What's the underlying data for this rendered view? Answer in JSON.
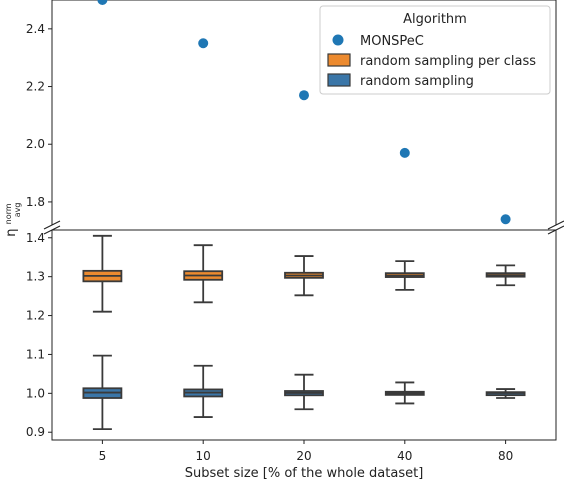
{
  "chart_data": {
    "type": "box",
    "xlabel": "Subset size [% of the whole dataset]",
    "ylabel_main": "η",
    "ylabel_sup": "norm",
    "ylabel_sub": "avg",
    "categories": [
      "5",
      "10",
      "20",
      "40",
      "80"
    ],
    "y_top_range": [
      1.72,
      2.5
    ],
    "y_bottom_range": [
      0.88,
      1.42
    ],
    "y_top_ticks": [
      "1.8",
      "2.0",
      "2.2",
      "2.4"
    ],
    "y_bottom_ticks": [
      "0.9",
      "1.0",
      "1.1",
      "1.2",
      "1.3",
      "1.4"
    ],
    "legend": {
      "title": "Algorithm",
      "position": "top-right",
      "entries": [
        "MONSPeC",
        "random sampling per class",
        "random sampling"
      ]
    },
    "series": [
      {
        "name": "MONSPeC",
        "kind": "scatter",
        "color": "#1f77b4",
        "values": [
          2.5,
          2.35,
          2.17,
          1.97,
          1.74
        ]
      },
      {
        "name": "random sampling per class",
        "kind": "box",
        "color": "#ec8a2f",
        "boxes": [
          {
            "min": 1.21,
            "q1": 1.288,
            "median": 1.302,
            "q3": 1.315,
            "max": 1.405
          },
          {
            "min": 1.234,
            "q1": 1.292,
            "median": 1.303,
            "q3": 1.314,
            "max": 1.381
          },
          {
            "min": 1.252,
            "q1": 1.297,
            "median": 1.303,
            "q3": 1.31,
            "max": 1.353
          },
          {
            "min": 1.266,
            "q1": 1.299,
            "median": 1.303,
            "q3": 1.309,
            "max": 1.34
          },
          {
            "min": 1.278,
            "q1": 1.3,
            "median": 1.304,
            "q3": 1.309,
            "max": 1.329
          }
        ]
      },
      {
        "name": "random sampling",
        "kind": "box",
        "color": "#3b76a8",
        "boxes": [
          {
            "min": 0.908,
            "q1": 0.988,
            "median": 1.002,
            "q3": 1.013,
            "max": 1.097
          },
          {
            "min": 0.939,
            "q1": 0.992,
            "median": 1.002,
            "q3": 1.01,
            "max": 1.071
          },
          {
            "min": 0.959,
            "q1": 0.995,
            "median": 1.001,
            "q3": 1.006,
            "max": 1.048
          },
          {
            "min": 0.974,
            "q1": 0.996,
            "median": 1.0,
            "q3": 1.004,
            "max": 1.028
          },
          {
            "min": 0.988,
            "q1": 0.998,
            "median": 1.001,
            "q3": 1.003,
            "max": 1.011
          }
        ]
      }
    ]
  }
}
